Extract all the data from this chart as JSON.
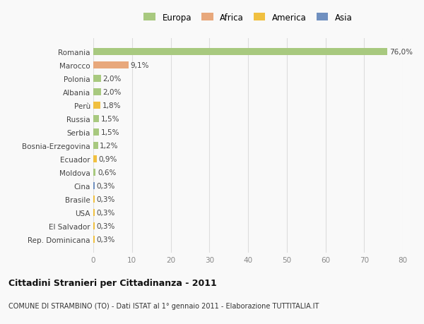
{
  "countries": [
    "Romania",
    "Marocco",
    "Polonia",
    "Albania",
    "Perù",
    "Russia",
    "Serbia",
    "Bosnia-Erzegovina",
    "Ecuador",
    "Moldova",
    "Cina",
    "Brasile",
    "USA",
    "El Salvador",
    "Rep. Dominicana"
  ],
  "values": [
    76.0,
    9.1,
    2.0,
    2.0,
    1.8,
    1.5,
    1.5,
    1.2,
    0.9,
    0.6,
    0.3,
    0.3,
    0.3,
    0.3,
    0.3
  ],
  "labels": [
    "76,0%",
    "9,1%",
    "2,0%",
    "2,0%",
    "1,8%",
    "1,5%",
    "1,5%",
    "1,2%",
    "0,9%",
    "0,6%",
    "0,3%",
    "0,3%",
    "0,3%",
    "0,3%",
    "0,3%"
  ],
  "continents": [
    "Europa",
    "Africa",
    "Europa",
    "Europa",
    "America",
    "Europa",
    "Europa",
    "Europa",
    "America",
    "Europa",
    "Asia",
    "America",
    "America",
    "America",
    "America"
  ],
  "colors": {
    "Europa": "#a8c97f",
    "Africa": "#e8a87c",
    "America": "#f0c040",
    "Asia": "#7090c0"
  },
  "xlim": [
    0,
    80
  ],
  "xticks": [
    0,
    10,
    20,
    30,
    40,
    50,
    60,
    70,
    80
  ],
  "title": "Cittadini Stranieri per Cittadinanza - 2011",
  "subtitle": "COMUNE DI STRAMBINO (TO) - Dati ISTAT al 1° gennaio 2011 - Elaborazione TUTTITALIA.IT",
  "background_color": "#f9f9f9",
  "grid_color": "#dddddd",
  "bar_height": 0.55,
  "legend_order": [
    "Europa",
    "Africa",
    "America",
    "Asia"
  ]
}
